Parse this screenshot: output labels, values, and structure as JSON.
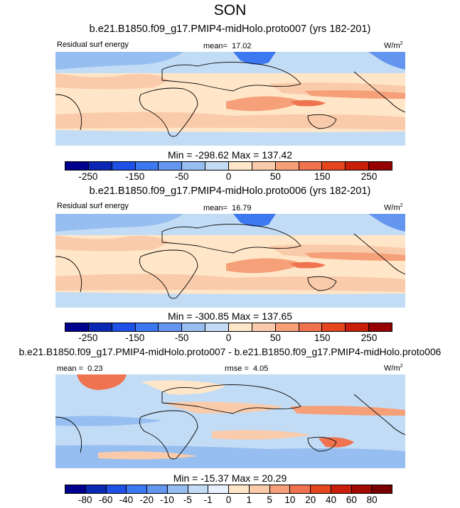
{
  "title": "SON",
  "units": "W/m",
  "units_sup": "2",
  "colors": {
    "panel_scale": [
      "#00008e",
      "#0a28b4",
      "#1e50e6",
      "#3c78f0",
      "#6496f0",
      "#96bef0",
      "#c3dcf5",
      "#ffe6c8",
      "#facbaa",
      "#f5a078",
      "#f07350",
      "#e6461e",
      "#c81e0a",
      "#960000"
    ],
    "diff_scale": [
      "#00008e",
      "#0a28b4",
      "#1e50e6",
      "#3c78f0",
      "#6496f0",
      "#96bef0",
      "#c3dcf5",
      "#ffe6c8",
      "#facbaa",
      "#f5a078",
      "#f07350",
      "#e6461e",
      "#c81e0a",
      "#960000"
    ]
  },
  "chart_data": [
    {
      "type": "heatmap",
      "title": "b.e21.B1850.f09_g17.PMIP4-midHolo.proto007 (yrs 182-201)",
      "variable": "Residual surf energy",
      "mean_label": "mean=",
      "mean_value": "17.02",
      "min_max": "Min = -298.62 Max = 137.42",
      "min": -298.62,
      "max": 137.42,
      "tick_labels": [
        "-250",
        "-150",
        "-50",
        "0",
        "50",
        "150",
        "250"
      ],
      "levels": [
        -300,
        -250,
        -200,
        -150,
        -100,
        -50,
        -10,
        0,
        10,
        50,
        100,
        150,
        200,
        250,
        300
      ]
    },
    {
      "type": "heatmap",
      "title": "b.e21.B1850.f09_g17.PMIP4-midHolo.proto006 (yrs 182-201)",
      "variable": "Residual surf energy",
      "mean_label": "mean=",
      "mean_value": "16.79",
      "min_max": "Min = -300.85 Max = 137.65",
      "min": -300.85,
      "max": 137.65,
      "tick_labels": [
        "-250",
        "-150",
        "-50",
        "0",
        "50",
        "150",
        "250"
      ],
      "levels": [
        -300,
        -250,
        -200,
        -150,
        -100,
        -50,
        -10,
        0,
        10,
        50,
        100,
        150,
        200,
        250,
        300
      ]
    },
    {
      "type": "heatmap",
      "title": "b.e21.B1850.f09_g17.PMIP4-midHolo.proto007 - b.e21.B1850.f09_g17.PMIP4-midHolo.proto006",
      "mean_label": "mean =",
      "mean_value": "0.23",
      "rmse_label": "rmse =",
      "rmse_value": "4.05",
      "min_max": "Min = -15.37 Max =  20.29",
      "min": -15.37,
      "max": 20.29,
      "tick_labels": [
        "-80",
        "-60",
        "-40",
        "-20",
        "-10",
        "-5",
        "-1",
        "0",
        "1",
        "5",
        "10",
        "20",
        "40",
        "60",
        "80"
      ],
      "levels": [
        -90,
        -80,
        -60,
        -40,
        -20,
        -10,
        -5,
        -1,
        0,
        1,
        5,
        10,
        20,
        40,
        60,
        80,
        90
      ]
    }
  ]
}
